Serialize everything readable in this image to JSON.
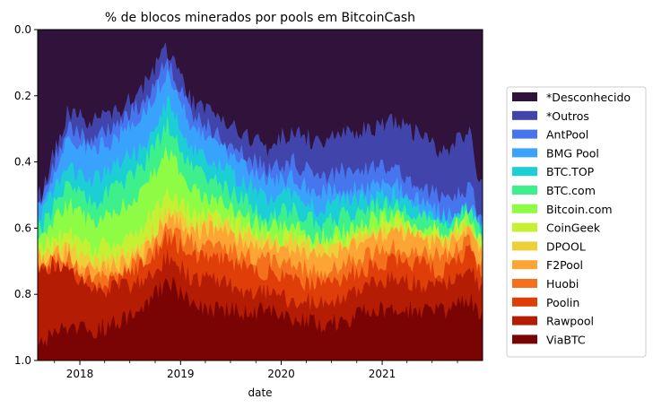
{
  "chart_data": {
    "type": "area",
    "stacked": true,
    "title": "% de blocos minerados por pools em BitcoinCash",
    "xlabel": "date",
    "ylabel": "",
    "y_inverted": true,
    "ylim": [
      0,
      1.0
    ],
    "xlim": [
      "2017-08-01",
      "2021-12-31"
    ],
    "x_ticks": [
      {
        "value": "2018-01-01",
        "label": "2018"
      },
      {
        "value": "2019-01-01",
        "label": "2019"
      },
      {
        "value": "2020-01-01",
        "label": "2020"
      },
      {
        "value": "2021-01-01",
        "label": "2021"
      }
    ],
    "y_ticks": [
      {
        "value": 0.0,
        "label": "0.0"
      },
      {
        "value": 0.2,
        "label": "0.2"
      },
      {
        "value": 0.4,
        "label": "0.4"
      },
      {
        "value": 0.6,
        "label": "0.6"
      },
      {
        "value": 0.8,
        "label": "0.8"
      },
      {
        "value": 1.0,
        "label": "1.0"
      }
    ],
    "grid": false,
    "legend_position": "right",
    "x": [
      "2017-08",
      "2017-11",
      "2018-02",
      "2018-05",
      "2018-08",
      "2018-11",
      "2019-02",
      "2019-05",
      "2019-08",
      "2019-11",
      "2020-02",
      "2020-05",
      "2020-08",
      "2020-11",
      "2021-02",
      "2021-05",
      "2021-08",
      "2021-11",
      "2021-12"
    ],
    "series": [
      {
        "name": "*Desconhecido",
        "color": "#30123b",
        "values": [
          0.5,
          0.25,
          0.28,
          0.25,
          0.18,
          0.06,
          0.25,
          0.3,
          0.35,
          0.4,
          0.3,
          0.35,
          0.32,
          0.3,
          0.28,
          0.32,
          0.38,
          0.3,
          0.45
        ]
      },
      {
        "name": "*Outros",
        "color": "#4145ab",
        "values": [
          0.02,
          0.05,
          0.05,
          0.04,
          0.04,
          0.03,
          0.04,
          0.05,
          0.06,
          0.07,
          0.1,
          0.1,
          0.11,
          0.12,
          0.14,
          0.15,
          0.14,
          0.18,
          0.1
        ]
      },
      {
        "name": "AntPool",
        "color": "#4675ed",
        "values": [
          0.02,
          0.04,
          0.04,
          0.04,
          0.04,
          0.04,
          0.04,
          0.03,
          0.04,
          0.04,
          0.05,
          0.05,
          0.05,
          0.06,
          0.05,
          0.05,
          0.04,
          0.05,
          0.04
        ]
      },
      {
        "name": "BMG Pool",
        "color": "#39a2fc",
        "values": [
          0.03,
          0.07,
          0.09,
          0.08,
          0.1,
          0.09,
          0.08,
          0.07,
          0.06,
          0.05,
          0.05,
          0.04,
          0.04,
          0.03,
          0.03,
          0.02,
          0.01,
          0.0,
          0.0
        ]
      },
      {
        "name": "BTC.TOP",
        "color": "#1bcfd4",
        "values": [
          0.03,
          0.06,
          0.07,
          0.07,
          0.06,
          0.07,
          0.06,
          0.06,
          0.06,
          0.06,
          0.05,
          0.05,
          0.04,
          0.03,
          0.03,
          0.02,
          0.02,
          0.01,
          0.01
        ]
      },
      {
        "name": "BTC.com",
        "color": "#3ef08c",
        "values": [
          0.03,
          0.06,
          0.06,
          0.07,
          0.07,
          0.08,
          0.07,
          0.06,
          0.05,
          0.04,
          0.05,
          0.04,
          0.05,
          0.04,
          0.03,
          0.03,
          0.02,
          0.02,
          0.02
        ]
      },
      {
        "name": "Bitcoin.com",
        "color": "#8efc45",
        "values": [
          0.03,
          0.08,
          0.08,
          0.09,
          0.11,
          0.12,
          0.08,
          0.05,
          0.04,
          0.03,
          0.03,
          0.02,
          0.02,
          0.02,
          0.02,
          0.01,
          0.01,
          0.01,
          0.01
        ]
      },
      {
        "name": "CoinGeek",
        "color": "#c6f034",
        "values": [
          0.02,
          0.04,
          0.04,
          0.05,
          0.06,
          0.06,
          0.03,
          0.02,
          0.02,
          0.01,
          0.01,
          0.01,
          0.01,
          0.01,
          0.01,
          0.01,
          0.01,
          0.01,
          0.01
        ]
      },
      {
        "name": "DPOOL",
        "color": "#eecf3a",
        "values": [
          0.01,
          0.02,
          0.02,
          0.02,
          0.02,
          0.02,
          0.02,
          0.02,
          0.02,
          0.02,
          0.02,
          0.02,
          0.02,
          0.02,
          0.02,
          0.02,
          0.02,
          0.02,
          0.02
        ]
      },
      {
        "name": "F2Pool",
        "color": "#fca534",
        "values": [
          0.01,
          0.02,
          0.02,
          0.02,
          0.02,
          0.03,
          0.04,
          0.05,
          0.05,
          0.04,
          0.06,
          0.05,
          0.05,
          0.05,
          0.05,
          0.04,
          0.04,
          0.03,
          0.04
        ]
      },
      {
        "name": "Huobi",
        "color": "#f5701c",
        "values": [
          0.01,
          0.02,
          0.02,
          0.02,
          0.02,
          0.03,
          0.04,
          0.04,
          0.04,
          0.05,
          0.04,
          0.04,
          0.04,
          0.04,
          0.04,
          0.04,
          0.04,
          0.03,
          0.03
        ]
      },
      {
        "name": "Poolin",
        "color": "#df3e09",
        "values": [
          0.0,
          0.01,
          0.02,
          0.03,
          0.05,
          0.06,
          0.08,
          0.08,
          0.08,
          0.07,
          0.06,
          0.06,
          0.06,
          0.06,
          0.05,
          0.06,
          0.05,
          0.05,
          0.05
        ]
      },
      {
        "name": "Rawpool",
        "color": "#b41d03",
        "values": [
          0.24,
          0.18,
          0.13,
          0.1,
          0.08,
          0.07,
          0.09,
          0.1,
          0.07,
          0.06,
          0.06,
          0.06,
          0.07,
          0.07,
          0.1,
          0.08,
          0.07,
          0.11,
          0.07
        ]
      },
      {
        "name": "ViaBTC",
        "color": "#7a0403",
        "values": [
          0.05,
          0.1,
          0.08,
          0.12,
          0.15,
          0.24,
          0.18,
          0.17,
          0.16,
          0.16,
          0.12,
          0.11,
          0.12,
          0.15,
          0.15,
          0.15,
          0.15,
          0.18,
          0.15
        ]
      }
    ]
  }
}
